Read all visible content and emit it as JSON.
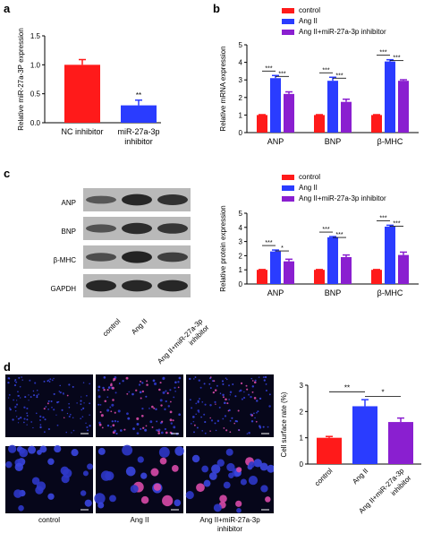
{
  "panels": {
    "a": "a",
    "b": "b",
    "c": "c",
    "d": "d"
  },
  "colors": {
    "control": "#ff1a1a",
    "ang": "#2a3cff",
    "inhib": "#8a1fd0",
    "err": "#000000"
  },
  "legend": [
    "control",
    "Ang II",
    "Ang II+miR-27a-3p inhibitor"
  ],
  "chart_data": [
    {
      "id": "a",
      "type": "bar",
      "categories": [
        "NC inhibitor",
        "miR-27a-3p\ninhibitor"
      ],
      "values": [
        1.0,
        0.3
      ],
      "errors": [
        0.09,
        0.09
      ],
      "ylabel": "Relative miR-27a-3P expression",
      "ylim": [
        0,
        1.5
      ],
      "yticks": [
        0.0,
        0.5,
        1.0,
        1.5
      ],
      "annotations": [
        "",
        "**"
      ]
    },
    {
      "id": "b",
      "type": "bar",
      "categories": [
        "ANP",
        "BNP",
        "β-MHC"
      ],
      "series": [
        {
          "name": "control",
          "values": [
            1.0,
            1.0,
            1.0
          ],
          "errors": [
            0.02,
            0.02,
            0.02
          ]
        },
        {
          "name": "Ang II",
          "values": [
            3.1,
            2.95,
            4.05
          ],
          "errors": [
            0.15,
            0.2,
            0.1
          ]
        },
        {
          "name": "Ang II+miR-27a-3p inhibitor",
          "values": [
            2.2,
            1.75,
            2.95
          ],
          "errors": [
            0.12,
            0.15,
            0.06
          ]
        }
      ],
      "ylabel": "Relative mRNA expression",
      "ylim": [
        0,
        5
      ],
      "yticks": [
        0,
        1,
        2,
        3,
        4,
        5
      ],
      "significance": [
        "***",
        "***"
      ]
    },
    {
      "id": "c",
      "type": "bar",
      "categories": [
        "ANP",
        "BNP",
        "β-MHC"
      ],
      "series": [
        {
          "name": "control",
          "values": [
            1.0,
            1.0,
            1.0
          ],
          "errors": [
            0.02,
            0.02,
            0.02
          ]
        },
        {
          "name": "Ang II",
          "values": [
            2.3,
            3.3,
            4.05
          ],
          "errors": [
            0.1,
            0.05,
            0.1
          ]
        },
        {
          "name": "Ang II+miR-27a-3p inhibitor",
          "values": [
            1.6,
            1.9,
            2.05
          ],
          "errors": [
            0.15,
            0.15,
            0.2
          ]
        }
      ],
      "ylabel": "Relative protein expression",
      "ylim": [
        0,
        5
      ],
      "yticks": [
        0,
        1,
        2,
        3,
        4,
        5
      ],
      "significance": [
        [
          "***",
          "*"
        ],
        [
          "***",
          "***"
        ],
        [
          "***",
          "***"
        ]
      ]
    },
    {
      "id": "d",
      "type": "bar",
      "categories": [
        "control",
        "Ang II",
        "Ang II+miR-27a-3p\ninhibitor"
      ],
      "values": [
        1.0,
        2.2,
        1.6
      ],
      "errors": [
        0.05,
        0.25,
        0.15
      ],
      "ylabel": "Cell surface rate (%)",
      "ylim": [
        0,
        3
      ],
      "yticks": [
        0,
        1,
        2,
        3
      ],
      "significance": [
        "**",
        "*"
      ]
    }
  ],
  "blot": {
    "rows": [
      "ANP",
      "BNP",
      "β-MHC",
      "GAPDH"
    ],
    "lanes": [
      "control",
      "Ang II",
      "Ang II+miR-27a-3p\ninhibitor"
    ]
  },
  "micro": {
    "labels": [
      "control",
      "Ang II",
      "Ang II+miR-27a-3p\ninhibitor"
    ]
  }
}
